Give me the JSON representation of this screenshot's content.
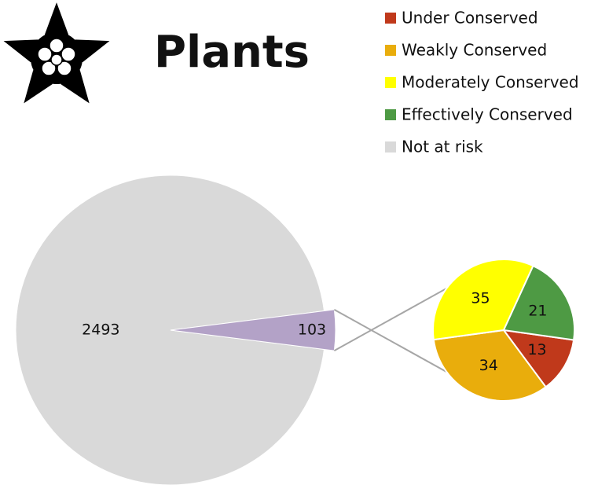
{
  "chart_data": {
    "type": "pie-of-pie",
    "title": "Plants",
    "pie": {
      "categories": [
        "Not at risk",
        null
      ],
      "values": [
        2493,
        103
      ],
      "colors": [
        "#d9d9d9",
        "#b3a2c7"
      ]
    },
    "secondary_pie": {
      "categories": [
        "Under Conserved",
        "Weakly Conserved",
        "Moderately Conserved",
        "Effectively Conserved"
      ],
      "values": [
        13,
        34,
        35,
        21
      ],
      "colors": [
        "#c0391b",
        "#e9ad0c",
        "#ffff00",
        "#4e9a44"
      ]
    }
  }
}
